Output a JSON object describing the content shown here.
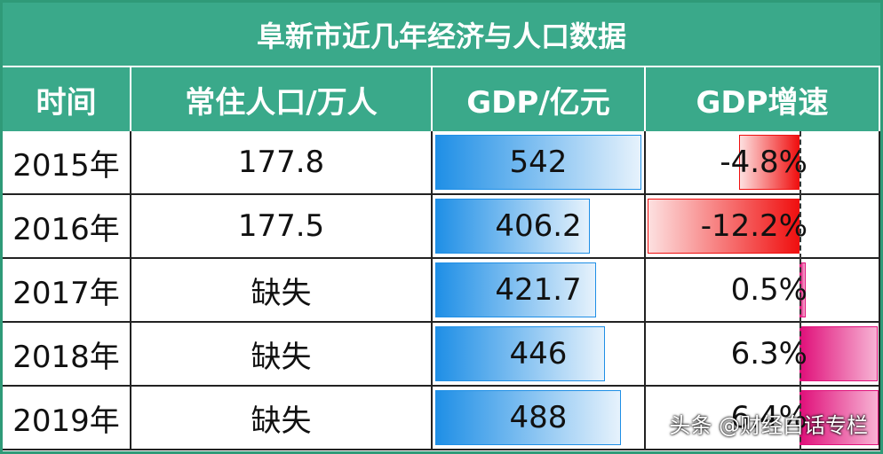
{
  "table": {
    "title": "阜新市近几年经济与人口数据",
    "columns": [
      "时间",
      "常住人口/万人",
      "GDP/亿元",
      "GDP增速"
    ],
    "rows": [
      [
        "2015年",
        "177.8",
        "542",
        "-4.8%"
      ],
      [
        "2016年",
        "177.5",
        "406.2",
        "-12.2%"
      ],
      [
        "2017年",
        "缺失",
        "421.7",
        "0.5%"
      ],
      [
        "2018年",
        "缺失",
        "446",
        "6.3%"
      ],
      [
        "2019年",
        "缺失",
        "488",
        "6.4%"
      ]
    ]
  },
  "watermark": "头条 @财经白话专栏"
}
